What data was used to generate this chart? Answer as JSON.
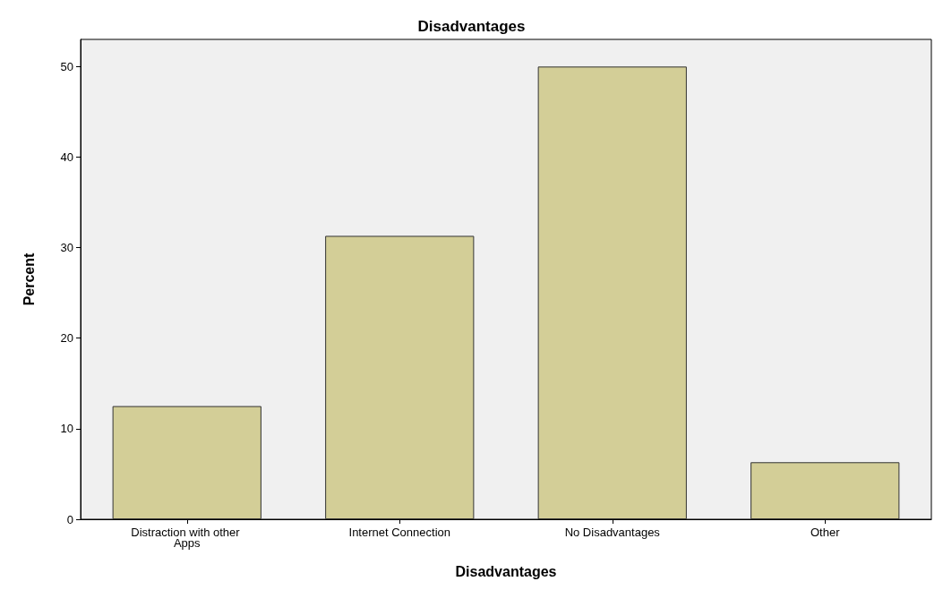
{
  "chart_data": {
    "type": "bar",
    "title": "Disadvantages",
    "xlabel": "Disadvantages",
    "ylabel": "Percent",
    "categories": [
      "Distraction with other Apps",
      "Internet Connection",
      "No Disadvantages",
      "Other"
    ],
    "values": [
      12.5,
      31.3,
      50,
      6.3
    ],
    "color": "#d3ce97",
    "ylim": [
      0,
      53
    ],
    "yticks": [
      0,
      10,
      20,
      30,
      40,
      50
    ],
    "grid": false
  }
}
